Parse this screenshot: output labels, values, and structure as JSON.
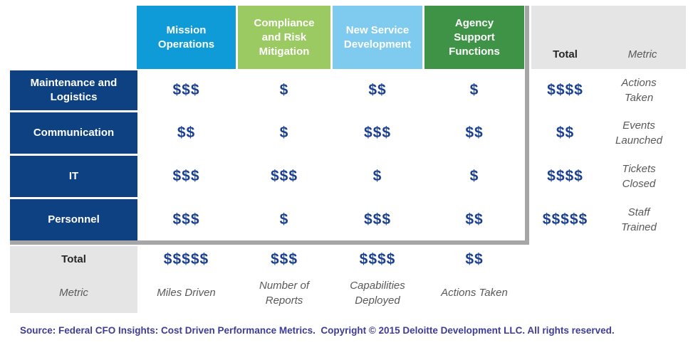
{
  "chart_data": {
    "type": "table",
    "description": "Cost driven performance metrics matrix showing relative cost ($ to $$$$$) of internal service areas across mission functions",
    "column_headers": [
      "Mission Operations",
      "Compliance and Risk Mitigation",
      "New Service Development",
      "Agency Support Functions"
    ],
    "summary_column_headers": {
      "total": "Total",
      "metric": "Metric"
    },
    "rows": [
      {
        "label": "Maintenance and Logistics",
        "costs": [
          "$$$",
          "$",
          "$$",
          "$"
        ],
        "total": "$$$$",
        "metric": "Actions Taken"
      },
      {
        "label": "Communication",
        "costs": [
          "$$",
          "$",
          "$$$",
          "$$"
        ],
        "total": "$$",
        "metric": "Events Launched"
      },
      {
        "label": "IT",
        "costs": [
          "$$$",
          "$$$",
          "$",
          "$"
        ],
        "total": "$$$$",
        "metric": "Tickets Closed"
      },
      {
        "label": "Personnel",
        "costs": [
          "$$$",
          "$",
          "$$$",
          "$$"
        ],
        "total": "$$$$$",
        "metric": "Staff Trained"
      }
    ],
    "totals_row": {
      "label": "Total",
      "costs": [
        "$$$$$",
        "$$$",
        "$$$$",
        "$$"
      ]
    },
    "metrics_row": {
      "label": "Metric",
      "metrics": [
        "Miles Driven",
        "Number of Reports",
        "Capabilities Deployed",
        "Actions Taken"
      ]
    }
  },
  "footer": {
    "source": "Source: Federal CFO Insights: Cost Driven Performance Metrics.  Copyright © 2015 Deloitte Development LLC. All rights reserved."
  },
  "colors": {
    "mission_operations_blue": "#0F9BD7",
    "compliance_risk_green": "#9BCA62",
    "new_service_light_blue": "#7FCBEF",
    "agency_support_green": "#3F9347",
    "row_header_navy": "#0E4182",
    "dollar_navy": "#1B4090",
    "frame_gray": "#A6A6A6",
    "panel_gray": "#E6E5E5",
    "metric_text_gray": "#595959",
    "source_text_purple": "#3E3C96"
  }
}
